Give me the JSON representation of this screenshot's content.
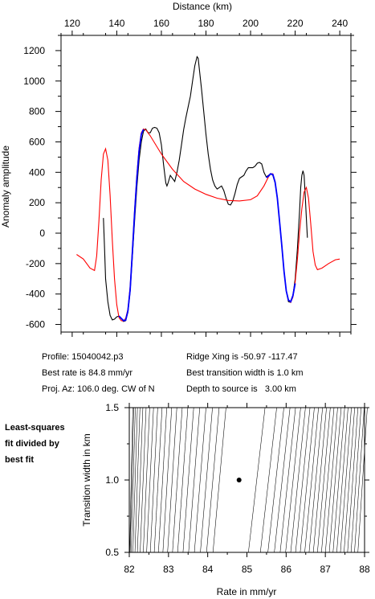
{
  "info": {
    "profile": "Profile: 15040042.p3",
    "ridge_xing": "Ridge Xing is -50.97 -117.47",
    "best_rate": "Best rate is 84.8 mm/yr",
    "best_width": "Best transition width is 1.0 km",
    "proj_az": "Proj. Az: 106.0 deg. CW of N",
    "depth": "Depth to source is   3.00 km"
  },
  "side_note": "Least-squares\nfit divided by\nbest fit",
  "colors": {
    "observed": "#000000",
    "model": "#ff0000",
    "fit_window": "#0000ff"
  },
  "chart_data": [
    {
      "type": "line",
      "xlabel": "Distance (km)",
      "ylabel": "Anomaly amplitude",
      "xlim": [
        115,
        245
      ],
      "ylim": [
        -650,
        1300
      ],
      "xticks": [
        120,
        140,
        160,
        180,
        200,
        220,
        240
      ],
      "yticks": [
        -600,
        -400,
        -200,
        0,
        200,
        400,
        600,
        800,
        1000,
        1200
      ],
      "x_axis_position": "top",
      "series": [
        {
          "color": "#000000",
          "points": [
            [
              134,
              100
            ],
            [
              134.5,
              -100
            ],
            [
              135,
              -300
            ],
            [
              136,
              -450
            ],
            [
              137,
              -540
            ],
            [
              138,
              -570
            ],
            [
              139,
              -565
            ],
            [
              140,
              -550
            ],
            [
              141,
              -545
            ],
            [
              142,
              -560
            ],
            [
              143,
              -580
            ],
            [
              144,
              -575
            ],
            [
              145,
              -520
            ],
            [
              146,
              -380
            ],
            [
              147,
              -150
            ],
            [
              148,
              80
            ],
            [
              149,
              300
            ],
            [
              150,
              480
            ],
            [
              151,
              600
            ],
            [
              152,
              670
            ],
            [
              153,
              685
            ],
            [
              154,
              660
            ],
            [
              155,
              660
            ],
            [
              156,
              690
            ],
            [
              157,
              695
            ],
            [
              158,
              690
            ],
            [
              159,
              660
            ],
            [
              160,
              580
            ],
            [
              161,
              450
            ],
            [
              162,
              330
            ],
            [
              162.5,
              310
            ],
            [
              163,
              330
            ],
            [
              164,
              380
            ],
            [
              165,
              360
            ],
            [
              166,
              340
            ],
            [
              167,
              400
            ],
            [
              168,
              480
            ],
            [
              169,
              580
            ],
            [
              170,
              680
            ],
            [
              171,
              760
            ],
            [
              172,
              830
            ],
            [
              173,
              900
            ],
            [
              174,
              1000
            ],
            [
              175,
              1100
            ],
            [
              176,
              1160
            ],
            [
              176.5,
              1150
            ],
            [
              177,
              1080
            ],
            [
              178,
              950
            ],
            [
              179,
              800
            ],
            [
              180,
              650
            ],
            [
              181,
              520
            ],
            [
              182,
              420
            ],
            [
              183,
              350
            ],
            [
              184,
              310
            ],
            [
              185,
              290
            ],
            [
              186,
              300
            ],
            [
              187,
              310
            ],
            [
              188,
              280
            ],
            [
              189,
              230
            ],
            [
              190,
              190
            ],
            [
              191,
              185
            ],
            [
              192,
              210
            ],
            [
              193,
              260
            ],
            [
              194,
              320
            ],
            [
              195,
              360
            ],
            [
              196,
              370
            ],
            [
              197,
              380
            ],
            [
              198,
              410
            ],
            [
              199,
              430
            ],
            [
              200,
              430
            ],
            [
              201,
              430
            ],
            [
              202,
              440
            ],
            [
              203,
              460
            ],
            [
              204,
              465
            ],
            [
              205,
              455
            ],
            [
              206,
              400
            ],
            [
              207,
              370
            ],
            [
              208,
              380
            ],
            [
              209,
              390
            ],
            [
              210,
              380
            ],
            [
              211,
              330
            ],
            [
              212,
              230
            ],
            [
              213,
              80
            ],
            [
              214,
              -80
            ],
            [
              215,
              -250
            ],
            [
              216,
              -380
            ],
            [
              217,
              -450
            ],
            [
              218,
              -455
            ],
            [
              219,
              -410
            ],
            [
              220,
              -300
            ],
            [
              221,
              -100
            ],
            [
              222,
              150
            ],
            [
              222.5,
              300
            ],
            [
              223,
              380
            ],
            [
              223.5,
              410
            ],
            [
              224,
              380
            ],
            [
              224.5,
              250
            ],
            [
              225,
              100
            ],
            [
              225.5,
              -30
            ]
          ]
        },
        {
          "color": "#ff0000",
          "points": [
            [
              122,
              -140
            ],
            [
              125,
              -170
            ],
            [
              128,
              -230
            ],
            [
              130,
              -245
            ],
            [
              131,
              -150
            ],
            [
              132,
              80
            ],
            [
              133,
              350
            ],
            [
              134,
              520
            ],
            [
              135,
              555
            ],
            [
              136,
              480
            ],
            [
              137,
              250
            ],
            [
              138,
              -50
            ],
            [
              139,
              -300
            ],
            [
              140,
              -470
            ],
            [
              141,
              -555
            ],
            [
              142,
              -575
            ],
            [
              143,
              -578
            ],
            [
              144,
              -560
            ],
            [
              145,
              -500
            ],
            [
              146,
              -350
            ],
            [
              147,
              -100
            ],
            [
              148,
              150
            ],
            [
              149,
              380
            ],
            [
              150,
              560
            ],
            [
              151,
              660
            ],
            [
              152,
              685
            ],
            [
              153,
              680
            ],
            [
              155,
              640
            ],
            [
              160,
              520
            ],
            [
              165,
              420
            ],
            [
              170,
              340
            ],
            [
              175,
              290
            ],
            [
              180,
              255
            ],
            [
              185,
              230
            ],
            [
              190,
              215
            ],
            [
              195,
              212
            ],
            [
              200,
              220
            ],
            [
              203,
              245
            ],
            [
              206,
              310
            ],
            [
              208,
              370
            ],
            [
              209,
              390
            ],
            [
              210,
              390
            ],
            [
              211,
              340
            ],
            [
              212,
              230
            ],
            [
              213,
              80
            ],
            [
              214,
              -80
            ],
            [
              215,
              -250
            ],
            [
              216,
              -380
            ],
            [
              217,
              -440
            ],
            [
              218,
              -455
            ],
            [
              219,
              -420
            ],
            [
              220,
              -320
            ],
            [
              221,
              -170
            ],
            [
              222,
              10
            ],
            [
              223,
              160
            ],
            [
              224,
              270
            ],
            [
              225,
              300
            ],
            [
              226,
              230
            ],
            [
              227,
              60
            ],
            [
              228,
              -120
            ],
            [
              229,
              -210
            ],
            [
              230,
              -240
            ],
            [
              232,
              -230
            ],
            [
              235,
              -200
            ],
            [
              238,
              -175
            ],
            [
              240,
              -170
            ]
          ]
        },
        {
          "color": "#0000ff",
          "points": [
            [
              141,
              -545
            ],
            [
              142,
              -560
            ],
            [
              143,
              -575
            ],
            [
              144,
              -572
            ],
            [
              145,
              -510
            ],
            [
              146,
              -370
            ],
            [
              147,
              -120
            ],
            [
              148,
              130
            ],
            [
              149,
              360
            ],
            [
              150,
              540
            ],
            [
              151,
              650
            ],
            [
              152,
              682
            ]
          ]
        },
        {
          "color": "#0000ff",
          "points": [
            [
              207,
              365
            ],
            [
              208,
              375
            ],
            [
              209,
              390
            ],
            [
              210,
              385
            ],
            [
              211,
              335
            ],
            [
              212,
              230
            ],
            [
              213,
              80
            ],
            [
              214,
              -80
            ],
            [
              215,
              -250
            ],
            [
              216,
              -380
            ],
            [
              217,
              -440
            ],
            [
              218,
              -450
            ],
            [
              219,
              -410
            ],
            [
              220,
              -330
            ]
          ]
        }
      ]
    },
    {
      "type": "contour",
      "xlabel": "Rate in mm/yr",
      "ylabel": "Transition width in km",
      "xlim": [
        82,
        88
      ],
      "ylim": [
        0.5,
        1.5
      ],
      "xticks": [
        82,
        83,
        84,
        85,
        86,
        87,
        88
      ],
      "yticks": [
        0.5,
        1.0,
        1.5
      ],
      "best_fit": {
        "rate": 84.8,
        "width": 1.0
      }
    }
  ]
}
